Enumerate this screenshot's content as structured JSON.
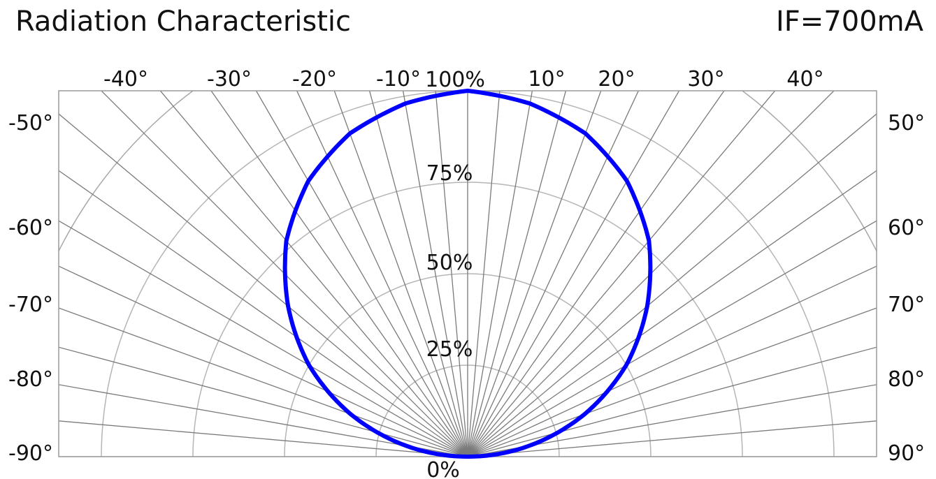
{
  "chart_data": {
    "type": "polar",
    "title": "Radiation Characteristic",
    "condition": "IF=700mA",
    "angle_range_deg": [
      -90,
      90
    ],
    "angle_step_deg": 5,
    "top_angle_labels": [
      "-40°",
      "-30°",
      "-20°",
      "-10°",
      "10°",
      "20°",
      "30°",
      "40°"
    ],
    "left_angle_labels": [
      "-50°",
      "-60°",
      "-70°",
      "-80°",
      "-90°"
    ],
    "right_angle_labels": [
      "50°",
      "60°",
      "70°",
      "80°",
      "90°"
    ],
    "radial_labels": [
      "0%",
      "25%",
      "50%",
      "75%",
      "100%"
    ],
    "radial_levels": [
      0,
      25,
      50,
      75,
      100
    ],
    "grid": true,
    "series": [
      {
        "color": "#0000ff",
        "angles_deg": [
          -90,
          -80,
          -70,
          -60,
          -50,
          -40,
          -30,
          -20,
          -10,
          0,
          10,
          20,
          30,
          40,
          50,
          60,
          70,
          80,
          90
        ],
        "values_pct": [
          0,
          17,
          34,
          50,
          64,
          77,
          87,
          94,
          98,
          100,
          98,
          94,
          87,
          77,
          64,
          50,
          34,
          17,
          0
        ]
      }
    ]
  }
}
